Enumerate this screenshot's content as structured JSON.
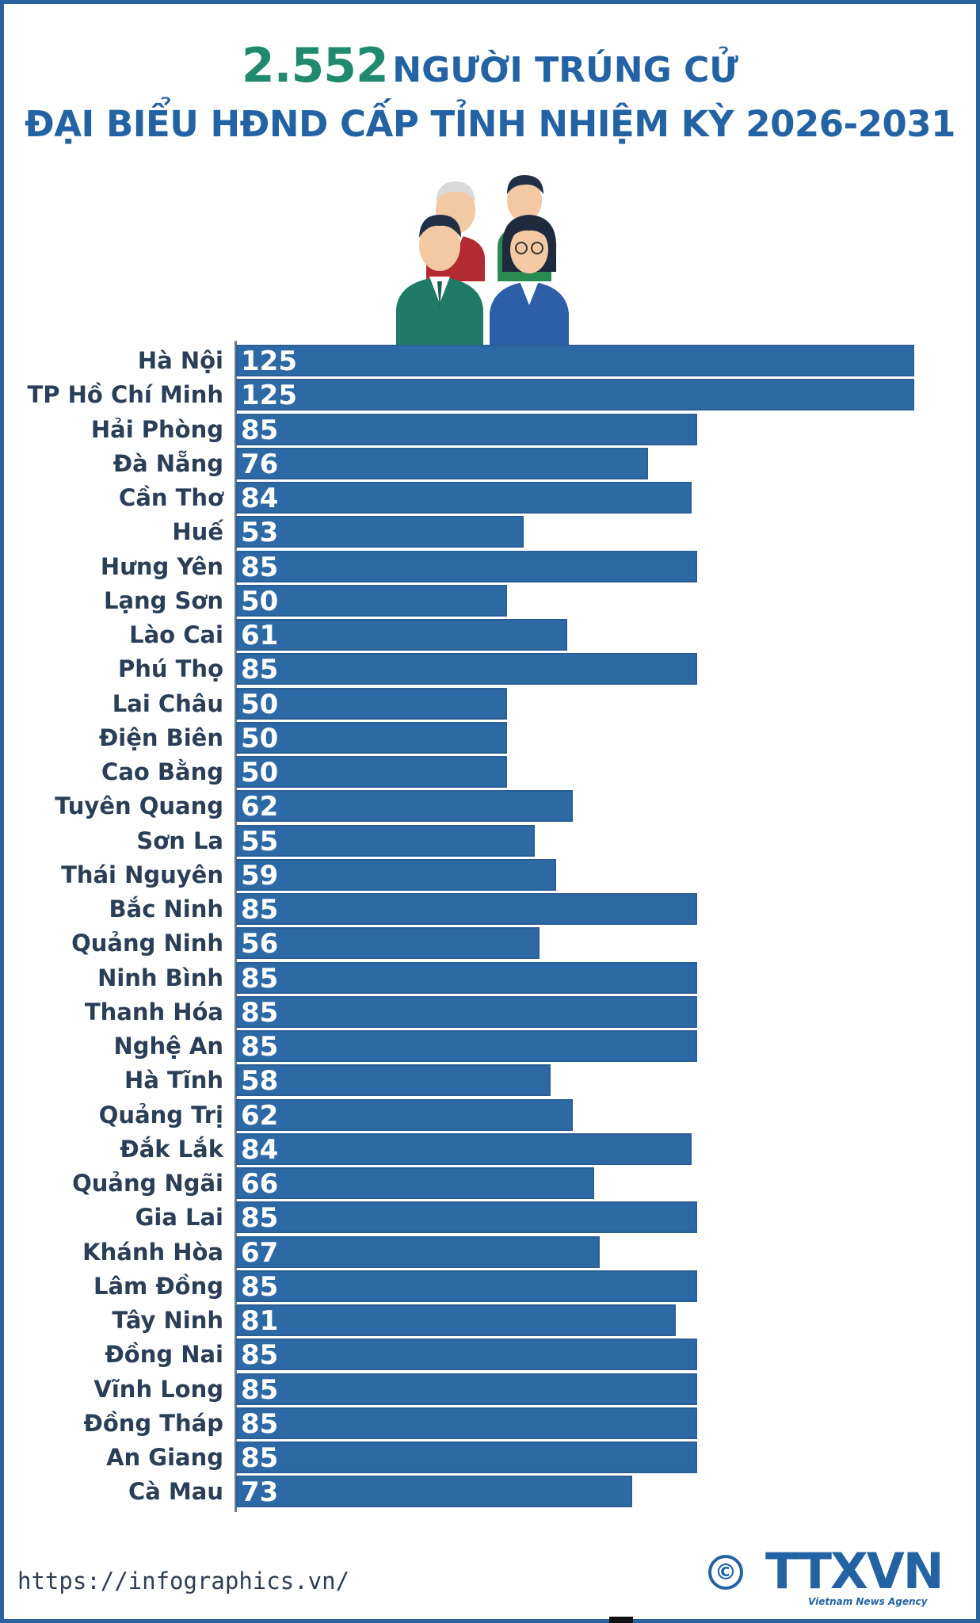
{
  "header": {
    "title_number": "2.552",
    "title_rest": "NGƯỜI TRÚNG CỬ",
    "subtitle": "ĐẠI BIỂU HĐND CẤP TỈNH NHIỆM KỲ 2026-2031"
  },
  "illustration": {
    "icon": "four-delegates-illustration"
  },
  "chart_data": {
    "type": "bar",
    "orientation": "horizontal",
    "title": "2.552 NGƯỜI TRÚNG CỬ ĐẠI BIỂU HĐND CẤP TỈNH NHIỆM KỲ 2026-2031",
    "xlabel": "",
    "ylabel": "",
    "xlim": [
      0,
      125
    ],
    "grid": false,
    "bar_color": "#2d6aa5",
    "categories": [
      "Hà Nội",
      "TP Hồ Chí Minh",
      "Hải Phòng",
      "Đà Nẵng",
      "Cần Thơ",
      "Huế",
      "Hưng Yên",
      "Lạng Sơn",
      "Lào Cai",
      "Phú Thọ",
      "Lai Châu",
      "Điện Biên",
      "Cao Bằng",
      "Tuyên Quang",
      "Sơn La",
      "Thái Nguyên",
      "Bắc Ninh",
      "Quảng Ninh",
      "Ninh Bình",
      "Thanh Hóa",
      "Nghệ An",
      "Hà Tĩnh",
      "Quảng Trị",
      "Đắk Lắk",
      "Quảng Ngãi",
      "Gia Lai",
      "Khánh Hòa",
      "Lâm Đồng",
      "Tây Ninh",
      "Đồng Nai",
      "Vĩnh Long",
      "Đồng Tháp",
      "An Giang",
      "Cà Mau"
    ],
    "values": [
      125,
      125,
      85,
      76,
      84,
      53,
      85,
      50,
      61,
      85,
      50,
      50,
      50,
      62,
      55,
      59,
      85,
      56,
      85,
      85,
      85,
      58,
      62,
      84,
      66,
      85,
      67,
      85,
      81,
      85,
      85,
      85,
      85,
      73
    ]
  },
  "footer": {
    "source": "https://infographics.vn/",
    "copyright_symbol": "©",
    "logo_text": "TTXVN",
    "logo_tagline": "Vietnam News Agency"
  },
  "colors": {
    "primary": "#2363a4",
    "accent": "#1f8a6e",
    "bar": "#2d6aa5"
  }
}
